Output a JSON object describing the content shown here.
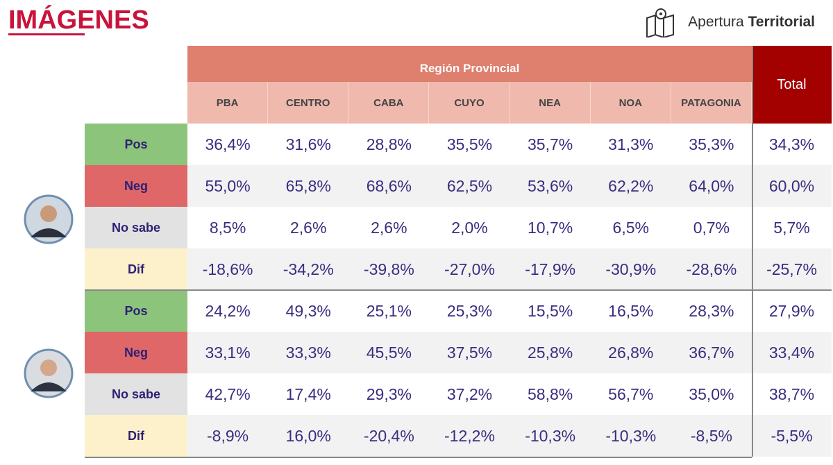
{
  "header": {
    "title": "IMÁGENES",
    "brand": {
      "light": "Apertura",
      "bold": "Territorial"
    }
  },
  "table": {
    "group_header": "Región Provincial",
    "total_header": "Total",
    "columns": [
      "PBA",
      "CENTRO",
      "CABA",
      "CUYO",
      "NEA",
      "NOA",
      "PATAGONIA"
    ],
    "groups": [
      {
        "rows": [
          {
            "label": "Pos",
            "values": [
              "36,4%",
              "31,6%",
              "28,8%",
              "35,5%",
              "35,7%",
              "31,3%",
              "35,3%",
              "34,3%"
            ]
          },
          {
            "label": "Neg",
            "values": [
              "55,0%",
              "65,8%",
              "68,6%",
              "62,5%",
              "53,6%",
              "62,2%",
              "64,0%",
              "60,0%"
            ]
          },
          {
            "label": "No sabe",
            "values": [
              "8,5%",
              "2,6%",
              "2,6%",
              "2,0%",
              "10,7%",
              "6,5%",
              "0,7%",
              "5,7%"
            ]
          },
          {
            "label": "Dif",
            "values": [
              "-18,6%",
              "-34,2%",
              "-39,8%",
              "-27,0%",
              "-17,9%",
              "-30,9%",
              "-28,6%",
              "-25,7%"
            ]
          }
        ]
      },
      {
        "rows": [
          {
            "label": "Pos",
            "values": [
              "24,2%",
              "49,3%",
              "25,1%",
              "25,3%",
              "15,5%",
              "16,5%",
              "28,3%",
              "27,9%"
            ]
          },
          {
            "label": "Neg",
            "values": [
              "33,1%",
              "33,3%",
              "45,5%",
              "37,5%",
              "25,8%",
              "26,8%",
              "36,7%",
              "33,4%"
            ]
          },
          {
            "label": "No sabe",
            "values": [
              "42,7%",
              "17,4%",
              "29,3%",
              "37,2%",
              "58,8%",
              "56,7%",
              "35,0%",
              "38,7%"
            ]
          },
          {
            "label": "Dif",
            "values": [
              "-8,9%",
              "16,0%",
              "-20,4%",
              "-12,2%",
              "-10,3%",
              "-10,3%",
              "-8,5%",
              "-5,5%"
            ]
          }
        ]
      }
    ]
  }
}
